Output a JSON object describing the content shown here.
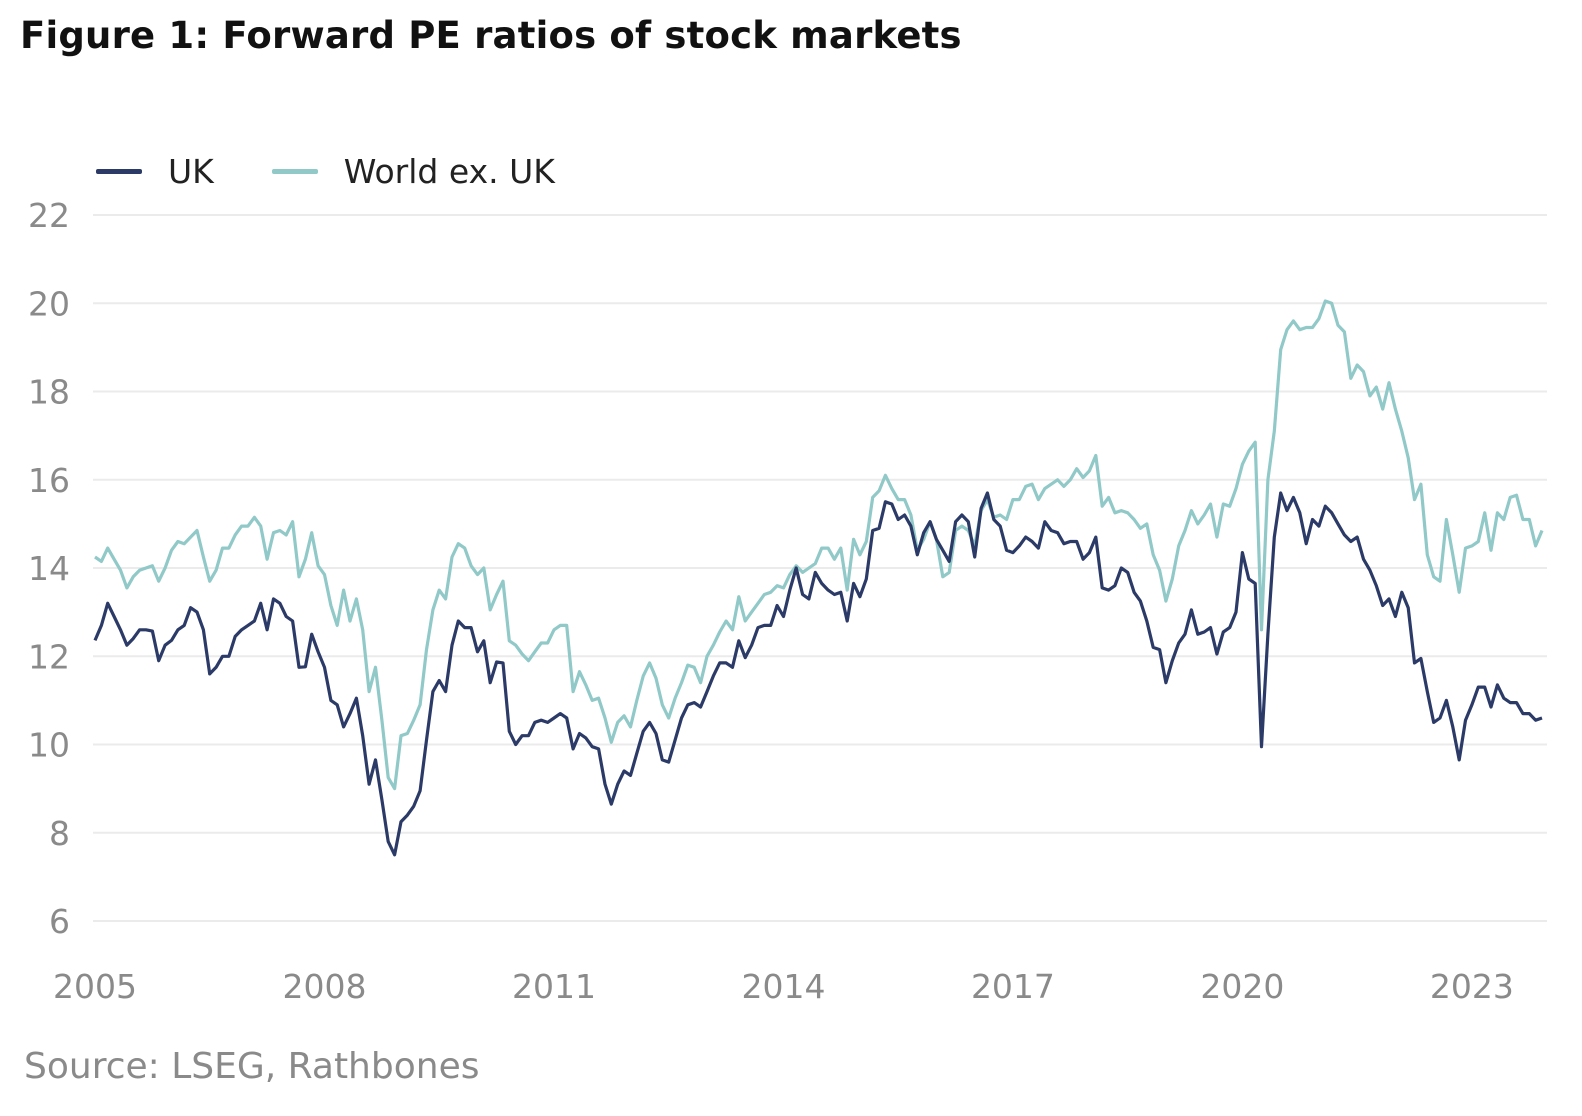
{
  "title": "Figure 1: Forward PE ratios of stock markets",
  "source": "Source: LSEG, Rathbones",
  "chart_data": {
    "type": "line",
    "title": "Figure 1: Forward PE ratios of stock markets",
    "xlabel": "",
    "ylabel": "",
    "ylim": [
      6,
      22
    ],
    "yticks": [
      "6",
      "8",
      "10",
      "12",
      "14",
      "16",
      "18",
      "20",
      "22"
    ],
    "xticks": [
      "2005",
      "2008",
      "2011",
      "2014",
      "2017",
      "2020",
      "2023"
    ],
    "grid": "horizontal",
    "legend_position": "top-left",
    "colors": {
      "UK": "#2b3a67",
      "World ex. UK": "#90c9c8",
      "grid": "#ebebeb",
      "axis_text": "#8a8a8a"
    },
    "x": [
      "2005-01",
      "2005-02",
      "2005-03",
      "2005-04",
      "2005-05",
      "2005-06",
      "2005-07",
      "2005-08",
      "2005-09",
      "2005-10",
      "2005-11",
      "2005-12",
      "2006-01",
      "2006-02",
      "2006-03",
      "2006-04",
      "2006-05",
      "2006-06",
      "2006-07",
      "2006-08",
      "2006-09",
      "2006-10",
      "2006-11",
      "2006-12",
      "2007-01",
      "2007-02",
      "2007-03",
      "2007-04",
      "2007-05",
      "2007-06",
      "2007-07",
      "2007-08",
      "2007-09",
      "2007-10",
      "2007-11",
      "2007-12",
      "2008-01",
      "2008-02",
      "2008-03",
      "2008-04",
      "2008-05",
      "2008-06",
      "2008-07",
      "2008-08",
      "2008-09",
      "2008-10",
      "2008-11",
      "2008-12",
      "2009-01",
      "2009-02",
      "2009-03",
      "2009-04",
      "2009-05",
      "2009-06",
      "2009-07",
      "2009-08",
      "2009-09",
      "2009-10",
      "2009-11",
      "2009-12",
      "2010-01",
      "2010-02",
      "2010-03",
      "2010-04",
      "2010-05",
      "2010-06",
      "2010-07",
      "2010-08",
      "2010-09",
      "2010-10",
      "2010-11",
      "2010-12",
      "2011-01",
      "2011-02",
      "2011-03",
      "2011-04",
      "2011-05",
      "2011-06",
      "2011-07",
      "2011-08",
      "2011-09",
      "2011-10",
      "2011-11",
      "2011-12",
      "2012-01",
      "2012-02",
      "2012-03",
      "2012-04",
      "2012-05",
      "2012-06",
      "2012-07",
      "2012-08",
      "2012-09",
      "2012-10",
      "2012-11",
      "2012-12",
      "2013-01",
      "2013-02",
      "2013-03",
      "2013-04",
      "2013-05",
      "2013-06",
      "2013-07",
      "2013-08",
      "2013-09",
      "2013-10",
      "2013-11",
      "2013-12",
      "2014-01",
      "2014-02",
      "2014-03",
      "2014-04",
      "2014-05",
      "2014-06",
      "2014-07",
      "2014-08",
      "2014-09",
      "2014-10",
      "2014-11",
      "2014-12",
      "2015-01",
      "2015-02",
      "2015-03",
      "2015-04",
      "2015-05",
      "2015-06",
      "2015-07",
      "2015-08",
      "2015-09",
      "2015-10",
      "2015-11",
      "2015-12",
      "2016-01",
      "2016-02",
      "2016-03",
      "2016-04",
      "2016-05",
      "2016-06",
      "2016-07",
      "2016-08",
      "2016-09",
      "2016-10",
      "2016-11",
      "2016-12",
      "2017-01",
      "2017-02",
      "2017-03",
      "2017-04",
      "2017-05",
      "2017-06",
      "2017-07",
      "2017-08",
      "2017-09",
      "2017-10",
      "2017-11",
      "2017-12",
      "2018-01",
      "2018-02",
      "2018-03",
      "2018-04",
      "2018-05",
      "2018-06",
      "2018-07",
      "2018-08",
      "2018-09",
      "2018-10",
      "2018-11",
      "2018-12",
      "2019-01",
      "2019-02",
      "2019-03",
      "2019-04",
      "2019-05",
      "2019-06",
      "2019-07",
      "2019-08",
      "2019-09",
      "2019-10",
      "2019-11",
      "2019-12",
      "2020-01",
      "2020-02",
      "2020-03",
      "2020-04",
      "2020-05",
      "2020-06",
      "2020-07",
      "2020-08",
      "2020-09",
      "2020-10",
      "2020-11",
      "2020-12",
      "2021-01",
      "2021-02",
      "2021-03",
      "2021-04",
      "2021-05",
      "2021-06",
      "2021-07",
      "2021-08",
      "2021-09",
      "2021-10",
      "2021-11",
      "2021-12",
      "2022-01",
      "2022-02",
      "2022-03",
      "2022-04",
      "2022-05",
      "2022-06",
      "2022-07",
      "2022-08",
      "2022-09",
      "2022-10",
      "2022-11",
      "2022-12",
      "2023-01",
      "2023-02",
      "2023-03",
      "2023-04",
      "2023-05",
      "2023-06",
      "2023-07",
      "2023-08",
      "2023-09",
      "2023-10",
      "2023-11",
      "2023-12"
    ],
    "series": [
      {
        "name": "UK",
        "values": [
          12.36,
          12.7,
          13.2,
          12.9,
          12.6,
          12.25,
          12.4,
          12.6,
          12.6,
          12.57,
          11.9,
          12.25,
          12.36,
          12.6,
          12.7,
          13.1,
          13.0,
          12.6,
          11.6,
          11.75,
          12.0,
          12.0,
          12.45,
          12.6,
          12.7,
          12.8,
          13.2,
          12.6,
          13.3,
          13.2,
          12.9,
          12.8,
          11.75,
          11.76,
          12.5,
          12.1,
          11.75,
          11.0,
          10.9,
          10.4,
          10.7,
          11.05,
          10.2,
          9.1,
          9.65,
          8.75,
          7.8,
          7.5,
          8.25,
          8.4,
          8.6,
          8.95,
          10.1,
          11.2,
          11.45,
          11.2,
          12.25,
          12.8,
          12.65,
          12.65,
          12.1,
          12.35,
          11.4,
          11.87,
          11.85,
          10.3,
          10.0,
          10.2,
          10.2,
          10.5,
          10.55,
          10.5,
          10.6,
          10.7,
          10.6,
          9.9,
          10.25,
          10.15,
          9.95,
          9.9,
          9.1,
          8.65,
          9.1,
          9.4,
          9.3,
          9.8,
          10.3,
          10.5,
          10.25,
          9.65,
          9.6,
          10.1,
          10.6,
          10.9,
          10.95,
          10.85,
          11.2,
          11.55,
          11.85,
          11.85,
          11.75,
          12.35,
          11.97,
          12.25,
          12.65,
          12.7,
          12.7,
          13.15,
          12.9,
          13.5,
          14.0,
          13.4,
          13.3,
          13.9,
          13.65,
          13.5,
          13.4,
          13.45,
          12.8,
          13.65,
          13.35,
          13.75,
          14.85,
          14.9,
          15.5,
          15.45,
          15.1,
          15.2,
          14.95,
          14.3,
          14.8,
          15.05,
          14.65,
          14.4,
          14.15,
          15.05,
          15.2,
          15.05,
          14.25,
          15.35,
          15.7,
          15.1,
          14.95,
          14.4,
          14.35,
          14.5,
          14.7,
          14.6,
          14.45,
          15.05,
          14.85,
          14.8,
          14.55,
          14.6,
          14.6,
          14.2,
          14.35,
          14.7,
          13.55,
          13.5,
          13.6,
          14.0,
          13.9,
          13.45,
          13.25,
          12.8,
          12.2,
          12.15,
          11.4,
          11.9,
          12.3,
          12.5,
          13.05,
          12.5,
          12.55,
          12.65,
          12.05,
          12.55,
          12.65,
          13.0,
          14.35,
          13.75,
          13.65,
          9.95,
          12.5,
          14.7,
          15.7,
          15.3,
          15.6,
          15.25,
          14.55,
          15.1,
          14.95,
          15.4,
          15.25,
          15.0,
          14.75,
          14.6,
          14.7,
          14.2,
          13.95,
          13.6,
          13.15,
          13.3,
          12.9,
          13.45,
          13.1,
          11.85,
          11.95,
          11.2,
          10.5,
          10.6,
          11.0,
          10.4,
          9.65,
          10.55,
          10.9,
          11.3,
          11.3,
          10.85,
          11.35,
          11.05,
          10.95,
          10.95,
          10.7,
          10.7,
          10.55,
          10.6
        ]
      },
      {
        "name": "World ex. UK",
        "values": [
          14.25,
          14.15,
          14.45,
          14.2,
          13.95,
          13.55,
          13.8,
          13.95,
          14.0,
          14.05,
          13.7,
          14.0,
          14.4,
          14.6,
          14.55,
          14.7,
          14.85,
          14.25,
          13.7,
          13.95,
          14.45,
          14.45,
          14.75,
          14.95,
          14.95,
          15.15,
          14.95,
          14.2,
          14.8,
          14.85,
          14.75,
          15.05,
          13.8,
          14.2,
          14.8,
          14.05,
          13.85,
          13.15,
          12.7,
          13.5,
          12.8,
          13.3,
          12.6,
          11.2,
          11.75,
          10.55,
          9.25,
          9.0,
          10.2,
          10.25,
          10.55,
          10.9,
          12.15,
          13.05,
          13.5,
          13.3,
          14.25,
          14.55,
          14.45,
          14.05,
          13.85,
          14.0,
          13.05,
          13.4,
          13.7,
          12.35,
          12.25,
          12.05,
          11.9,
          12.1,
          12.3,
          12.3,
          12.6,
          12.7,
          12.7,
          11.2,
          11.65,
          11.35,
          11.0,
          11.05,
          10.6,
          10.05,
          10.5,
          10.65,
          10.4,
          11.0,
          11.55,
          11.85,
          11.5,
          10.9,
          10.6,
          11.05,
          11.4,
          11.8,
          11.75,
          11.4,
          12.0,
          12.25,
          12.55,
          12.8,
          12.6,
          13.35,
          12.8,
          13.0,
          13.2,
          13.4,
          13.45,
          13.6,
          13.55,
          13.85,
          14.05,
          13.9,
          14.0,
          14.1,
          14.45,
          14.45,
          14.2,
          14.45,
          13.5,
          14.65,
          14.3,
          14.6,
          15.6,
          15.75,
          16.1,
          15.8,
          15.55,
          15.55,
          15.2,
          14.4,
          14.65,
          15.05,
          14.65,
          13.8,
          13.9,
          14.85,
          14.95,
          14.85,
          14.5,
          15.3,
          15.55,
          15.15,
          15.2,
          15.1,
          15.55,
          15.55,
          15.85,
          15.9,
          15.55,
          15.8,
          15.9,
          16.0,
          15.85,
          16.0,
          16.25,
          16.05,
          16.2,
          16.55,
          15.4,
          15.6,
          15.25,
          15.3,
          15.25,
          15.1,
          14.9,
          15.0,
          14.3,
          13.95,
          13.25,
          13.75,
          14.5,
          14.85,
          15.3,
          15.0,
          15.2,
          15.45,
          14.7,
          15.45,
          15.4,
          15.8,
          16.35,
          16.65,
          16.85,
          12.6,
          16.0,
          17.1,
          18.95,
          19.4,
          19.6,
          19.4,
          19.45,
          19.45,
          19.65,
          20.05,
          20.0,
          19.5,
          19.35,
          18.3,
          18.6,
          18.45,
          17.9,
          18.1,
          17.6,
          18.2,
          17.6,
          17.1,
          16.5,
          15.55,
          15.9,
          14.3,
          13.8,
          13.7,
          15.1,
          14.3,
          13.45,
          14.45,
          14.5,
          14.6,
          15.25,
          14.4,
          15.25,
          15.1,
          15.6,
          15.65,
          15.1,
          15.1,
          14.5,
          14.85
        ]
      }
    ]
  }
}
